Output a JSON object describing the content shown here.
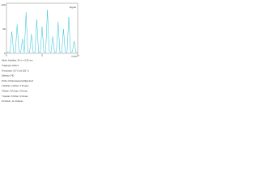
{
  "chart_data": {
    "type": "line",
    "x": [
      0,
      0.25,
      0.5,
      0.75,
      1,
      1.25,
      1.5,
      1.75,
      2,
      2.25,
      2.5,
      2.75,
      3,
      3.25,
      3.5,
      3.75,
      4,
      4.25,
      4.5,
      4.75,
      5,
      5.25,
      5.5,
      5.75,
      6,
      6.25,
      6.5,
      6.75,
      7,
      7.25,
      7.5,
      7.75,
      8,
      8.25,
      8.5,
      8.75,
      9,
      9.25,
      9.5,
      9.75,
      10
    ],
    "series": [
      {
        "name": "Signal",
        "color": "#29c4d6",
        "values": [
          2,
          3,
          2,
          45,
          3,
          2,
          60,
          4,
          2,
          30,
          2,
          85,
          3,
          2,
          40,
          2,
          3,
          70,
          2,
          2,
          55,
          3,
          2,
          90,
          4,
          2,
          35,
          2,
          3,
          65,
          2,
          2,
          50,
          3,
          2,
          75,
          2,
          3,
          25,
          2,
          2
        ]
      }
    ],
    "xlim": [
      0,
      10
    ],
    "xticks": [
      0,
      5,
      10
    ],
    "ylim": [
      0,
      100
    ],
    "yticks": [
      0,
      50,
      100
    ],
    "x_label": "t/min",
    "grid": false
  },
  "caption": [
    "Säule: Kapillare, 25 m × 0,25 mm",
    "Trägergas: Helium",
    "Temperatur: 50 °C bis 250 °C",
    "Detektor: FID",
    "Probe: Kohlenwasserstoffgemisch",
    "1 Methan, 2 Ethan, 3 Propan,",
    "4 Butan, 5 Pentan, 6 Hexan,",
    "7 Heptan, 8 Octan, 9 Nonan,",
    "10 Decan, 11 Undecan"
  ]
}
